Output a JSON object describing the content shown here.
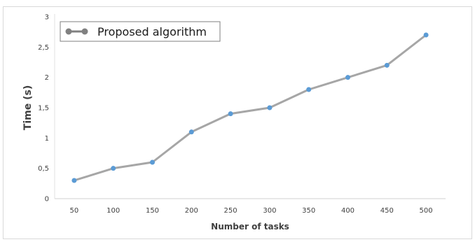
{
  "chart_data": {
    "type": "line",
    "title": "",
    "xlabel": "Number of tasks",
    "ylabel": "Time (s)",
    "categories": [
      "50",
      "100",
      "150",
      "200",
      "250",
      "300",
      "350",
      "400",
      "450",
      "500"
    ],
    "series": [
      {
        "name": "Proposed algorithm",
        "values": [
          0.3,
          0.5,
          0.6,
          1.1,
          1.4,
          1.5,
          1.8,
          2.0,
          2.2,
          2.7
        ],
        "line_color": "#a6a6a6",
        "marker_color": "#5b9bd5"
      }
    ],
    "ylim": [
      0,
      3
    ],
    "yticks": [
      0,
      0.5,
      1,
      1.5,
      2,
      2.5,
      3
    ],
    "ytick_labels": [
      "0",
      "0,5",
      "1",
      "1,5",
      "2",
      "2,5",
      "3"
    ],
    "grid": false,
    "legend": "top-left",
    "legend_marker_color": "#808080"
  }
}
